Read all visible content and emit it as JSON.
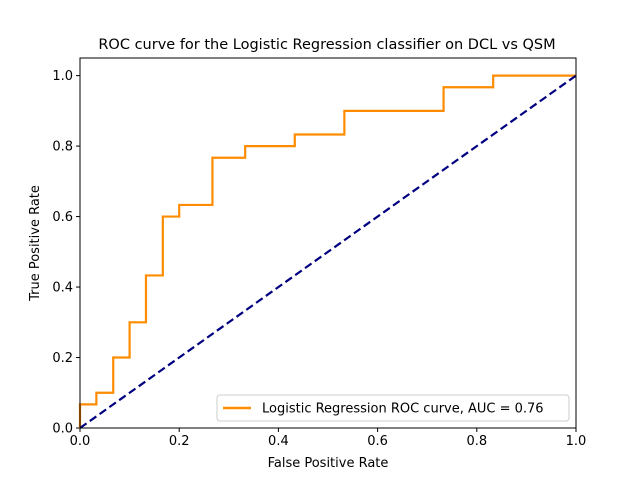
{
  "chart_data": {
    "type": "line",
    "title": "ROC curve for the Logistic Regression classifier on DCL vs QSM",
    "xlabel": "False Positive Rate",
    "ylabel": "True Positive Rate",
    "xlim": [
      0.0,
      1.0
    ],
    "ylim": [
      0.0,
      1.05
    ],
    "xticks": [
      "0.0",
      "0.2",
      "0.4",
      "0.6",
      "0.8",
      "1.0"
    ],
    "yticks": [
      "0.0",
      "0.2",
      "0.4",
      "0.6",
      "0.8",
      "1.0"
    ],
    "grid": false,
    "legend_position": "lower-right",
    "series": [
      {
        "name": "Logistic Regression ROC curve, AUC = 0.76",
        "color": "#ff8c00",
        "style": "solid",
        "x": [
          0.0,
          0.0,
          0.033,
          0.033,
          0.067,
          0.067,
          0.1,
          0.1,
          0.133,
          0.133,
          0.167,
          0.167,
          0.2,
          0.2,
          0.267,
          0.267,
          0.333,
          0.333,
          0.433,
          0.433,
          0.533,
          0.533,
          0.733,
          0.733,
          0.833,
          0.833,
          1.0
        ],
        "y": [
          0.0,
          0.067,
          0.067,
          0.1,
          0.1,
          0.2,
          0.2,
          0.3,
          0.3,
          0.433,
          0.433,
          0.6,
          0.6,
          0.633,
          0.633,
          0.767,
          0.767,
          0.8,
          0.8,
          0.833,
          0.833,
          0.9,
          0.9,
          0.967,
          0.967,
          1.0,
          1.0
        ]
      },
      {
        "color": "#000080",
        "style": "dashed",
        "x": [
          0.0,
          1.0
        ],
        "y": [
          0.0,
          1.0
        ]
      }
    ]
  }
}
